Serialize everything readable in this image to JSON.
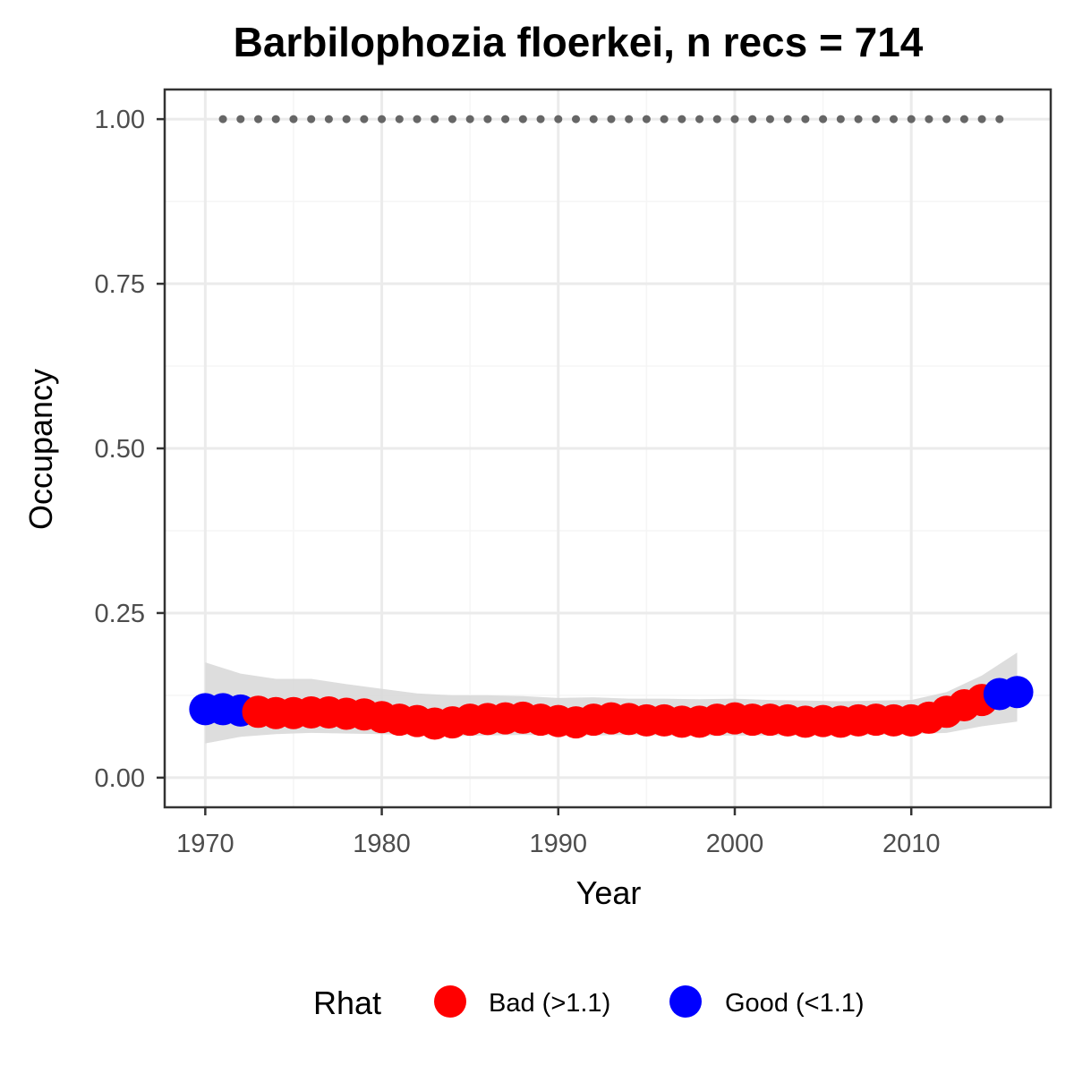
{
  "chart_data": {
    "type": "scatter",
    "title": "Barbilophozia floerkei, n recs = 714",
    "xlabel": "Year",
    "ylabel": "Occupancy",
    "xlim": [
      1967.7,
      2017.9
    ],
    "ylim": [
      -0.045,
      1.045
    ],
    "x_ticks": [
      1970,
      1980,
      1990,
      2000,
      2010
    ],
    "x_tick_labels": [
      "1970",
      "1980",
      "1990",
      "2000",
      "2010"
    ],
    "y_ticks": [
      0,
      0.25,
      0.5,
      0.75,
      1.0
    ],
    "y_tick_labels": [
      "0.00",
      "0.25",
      "0.50",
      "0.75",
      "1.00"
    ],
    "grid": true,
    "legend": {
      "title": "Rhat",
      "position": "bottom",
      "entries": [
        {
          "label": "Bad (>1.1)",
          "color": "#ff0000"
        },
        {
          "label": "Good (<1.1)",
          "color": "#0000ff"
        }
      ]
    },
    "series": [
      {
        "name": "Occupancy",
        "x": [
          1970,
          1971,
          1972,
          1973,
          1974,
          1975,
          1976,
          1977,
          1978,
          1979,
          1980,
          1981,
          1982,
          1983,
          1984,
          1985,
          1986,
          1987,
          1988,
          1989,
          1990,
          1991,
          1992,
          1993,
          1994,
          1995,
          1996,
          1997,
          1998,
          1999,
          2000,
          2001,
          2002,
          2003,
          2004,
          2005,
          2006,
          2007,
          2008,
          2009,
          2010,
          2011,
          2012,
          2013,
          2014,
          2015,
          2016
        ],
        "y": [
          0.104,
          0.104,
          0.102,
          0.1,
          0.098,
          0.098,
          0.099,
          0.099,
          0.097,
          0.096,
          0.092,
          0.088,
          0.086,
          0.082,
          0.084,
          0.088,
          0.089,
          0.09,
          0.091,
          0.088,
          0.086,
          0.084,
          0.088,
          0.09,
          0.089,
          0.087,
          0.087,
          0.085,
          0.085,
          0.088,
          0.09,
          0.088,
          0.088,
          0.087,
          0.085,
          0.086,
          0.085,
          0.087,
          0.088,
          0.087,
          0.087,
          0.091,
          0.1,
          0.11,
          0.118,
          0.127,
          0.13
        ],
        "rhat": [
          "Good",
          "Good",
          "Good",
          "Bad",
          "Bad",
          "Bad",
          "Bad",
          "Bad",
          "Bad",
          "Bad",
          "Bad",
          "Bad",
          "Bad",
          "Bad",
          "Bad",
          "Bad",
          "Bad",
          "Bad",
          "Bad",
          "Bad",
          "Bad",
          "Bad",
          "Bad",
          "Bad",
          "Bad",
          "Bad",
          "Bad",
          "Bad",
          "Bad",
          "Bad",
          "Bad",
          "Bad",
          "Bad",
          "Bad",
          "Bad",
          "Bad",
          "Bad",
          "Bad",
          "Bad",
          "Bad",
          "Bad",
          "Bad",
          "Bad",
          "Bad",
          "Bad",
          "Good",
          "Good"
        ]
      }
    ],
    "ribbon": {
      "x": [
        1970,
        1972,
        1974,
        1976,
        1978,
        1980,
        1982,
        1984,
        1986,
        1988,
        1990,
        1992,
        1994,
        1996,
        1998,
        2000,
        2002,
        2004,
        2006,
        2008,
        2010,
        2012,
        2014,
        2016
      ],
      "lower": [
        0.052,
        0.062,
        0.066,
        0.068,
        0.067,
        0.066,
        0.064,
        0.063,
        0.064,
        0.065,
        0.064,
        0.064,
        0.065,
        0.064,
        0.063,
        0.064,
        0.064,
        0.064,
        0.064,
        0.065,
        0.066,
        0.068,
        0.078,
        0.085
      ],
      "upper": [
        0.175,
        0.158,
        0.15,
        0.15,
        0.142,
        0.135,
        0.128,
        0.125,
        0.125,
        0.124,
        0.121,
        0.122,
        0.12,
        0.12,
        0.119,
        0.12,
        0.118,
        0.117,
        0.116,
        0.117,
        0.118,
        0.13,
        0.155,
        0.19
      ]
    },
    "reference_points": {
      "x": [
        1971,
        1972,
        1973,
        1974,
        1975,
        1976,
        1977,
        1978,
        1979,
        1980,
        1981,
        1982,
        1983,
        1984,
        1985,
        1986,
        1987,
        1988,
        1989,
        1990,
        1991,
        1992,
        1993,
        1994,
        1995,
        1996,
        1997,
        1998,
        1999,
        2000,
        2001,
        2002,
        2003,
        2004,
        2005,
        2006,
        2007,
        2008,
        2009,
        2010,
        2011,
        2012,
        2013,
        2014,
        2015
      ],
      "y": 1.0,
      "color": "#666666"
    },
    "colors": {
      "bad": "#ff0000",
      "good": "#0000ff",
      "ribbon": "#d9d9d9",
      "reference": "#666666",
      "grid_major": "#ebebeb",
      "grid_minor": "#f5f5f5",
      "panel_border": "#333333"
    }
  }
}
